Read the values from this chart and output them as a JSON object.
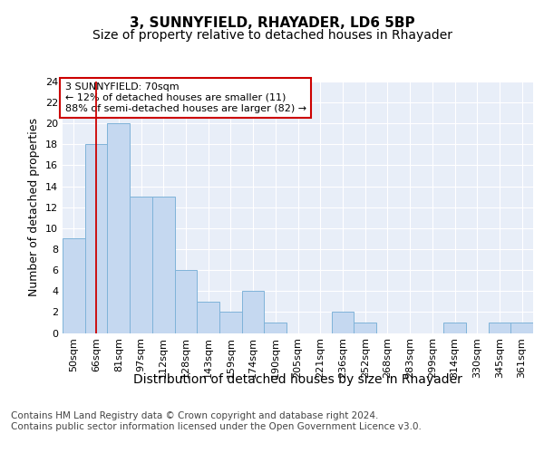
{
  "title": "3, SUNNYFIELD, RHAYADER, LD6 5BP",
  "subtitle": "Size of property relative to detached houses in Rhayader",
  "xlabel": "Distribution of detached houses by size in Rhayader",
  "ylabel": "Number of detached properties",
  "bar_labels": [
    "50sqm",
    "66sqm",
    "81sqm",
    "97sqm",
    "112sqm",
    "128sqm",
    "143sqm",
    "159sqm",
    "174sqm",
    "190sqm",
    "205sqm",
    "221sqm",
    "236sqm",
    "252sqm",
    "268sqm",
    "283sqm",
    "299sqm",
    "314sqm",
    "330sqm",
    "345sqm",
    "361sqm"
  ],
  "bar_values": [
    9,
    18,
    20,
    13,
    13,
    6,
    3,
    2,
    4,
    1,
    0,
    0,
    2,
    1,
    0,
    0,
    0,
    1,
    0,
    1,
    1
  ],
  "bar_color": "#c5d8f0",
  "bar_edge_color": "#7fb3d9",
  "background_color": "#e8eef8",
  "grid_color": "#ffffff",
  "annotation_text": "3 SUNNYFIELD: 70sqm\n← 12% of detached houses are smaller (11)\n88% of semi-detached houses are larger (82) →",
  "annotation_box_color": "#ffffff",
  "annotation_box_edge_color": "#cc0000",
  "vline_color": "#cc0000",
  "vline_position": 1.5,
  "ylim": [
    0,
    24
  ],
  "yticks": [
    0,
    2,
    4,
    6,
    8,
    10,
    12,
    14,
    16,
    18,
    20,
    22,
    24
  ],
  "footer_line1": "Contains HM Land Registry data © Crown copyright and database right 2024.",
  "footer_line2": "Contains public sector information licensed under the Open Government Licence v3.0.",
  "title_fontsize": 11,
  "subtitle_fontsize": 10,
  "xlabel_fontsize": 10,
  "ylabel_fontsize": 9,
  "tick_fontsize": 8,
  "annotation_fontsize": 8,
  "footer_fontsize": 7.5
}
